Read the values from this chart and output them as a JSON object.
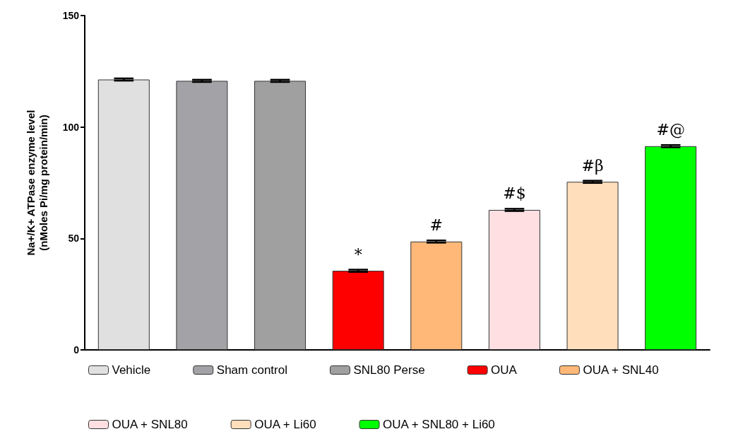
{
  "chart_data": {
    "type": "bar",
    "ylabel": "Na+/K+ ATPase enzyme level\n(nMoles Pi/mg protein/min)",
    "categories": [
      null,
      null,
      null,
      null,
      null,
      null,
      null,
      null
    ],
    "ylim": [
      0,
      150
    ],
    "yticks": [
      0,
      50,
      100,
      150
    ],
    "grid": false,
    "legend": "bottom",
    "series": [
      {
        "name": "Vehicle",
        "color": "#e0e0e0",
        "values": [
          121.3,
          null,
          null,
          null,
          null,
          null,
          null,
          null
        ],
        "errors": [
          0.5,
          null,
          null,
          null,
          null,
          null,
          null,
          null
        ]
      },
      {
        "name": "Sham control",
        "color": "#a3a2a6",
        "values": [
          null,
          120.7,
          null,
          null,
          null,
          null,
          null,
          null
        ],
        "errors": [
          null,
          0.5,
          null,
          null,
          null,
          null,
          null,
          null
        ]
      },
      {
        "name": "SNL80 Perse",
        "color": "#a0a0a0",
        "values": [
          null,
          null,
          120.7,
          null,
          null,
          null,
          null,
          null
        ],
        "errors": [
          null,
          null,
          0.5,
          null,
          null,
          null,
          null,
          null
        ]
      },
      {
        "name": "OUA",
        "color": "#ff0000",
        "values": [
          null,
          null,
          null,
          35.5,
          null,
          null,
          null,
          null
        ],
        "errors": [
          null,
          null,
          null,
          0.5,
          null,
          null,
          null,
          null
        ],
        "value_labels": [
          null,
          null,
          null,
          "*",
          null,
          null,
          null,
          null
        ]
      },
      {
        "name": "OUA + SNL40",
        "color": "#ffb878",
        "values": [
          null,
          null,
          null,
          null,
          48.6,
          null,
          null,
          null
        ],
        "errors": [
          null,
          null,
          null,
          null,
          0.5,
          null,
          null,
          null
        ],
        "value_labels": [
          null,
          null,
          null,
          null,
          "#",
          null,
          null,
          null
        ]
      },
      {
        "name": "OUA + SNL80",
        "color": "#ffdfe2",
        "values": [
          null,
          null,
          null,
          null,
          null,
          62.8,
          null,
          null
        ],
        "errors": [
          null,
          null,
          null,
          null,
          null,
          0.5,
          null,
          null
        ],
        "value_labels": [
          null,
          null,
          null,
          null,
          null,
          "#$",
          null,
          null
        ]
      },
      {
        "name": "OUA + Li60",
        "color": "#ffdfbb",
        "values": [
          null,
          null,
          null,
          null,
          null,
          null,
          75.4,
          null
        ],
        "errors": [
          null,
          null,
          null,
          null,
          null,
          null,
          0.5,
          null
        ],
        "value_labels": [
          null,
          null,
          null,
          null,
          null,
          null,
          "#β",
          null
        ]
      },
      {
        "name": "OUA + SNL80 + Li60",
        "color": "#00ff00",
        "values": [
          null,
          null,
          null,
          null,
          null,
          null,
          null,
          91.4
        ],
        "errors": [
          null,
          null,
          null,
          null,
          null,
          null,
          null,
          0.5
        ],
        "value_labels": [
          null,
          null,
          null,
          null,
          null,
          null,
          null,
          "#@"
        ]
      }
    ]
  }
}
